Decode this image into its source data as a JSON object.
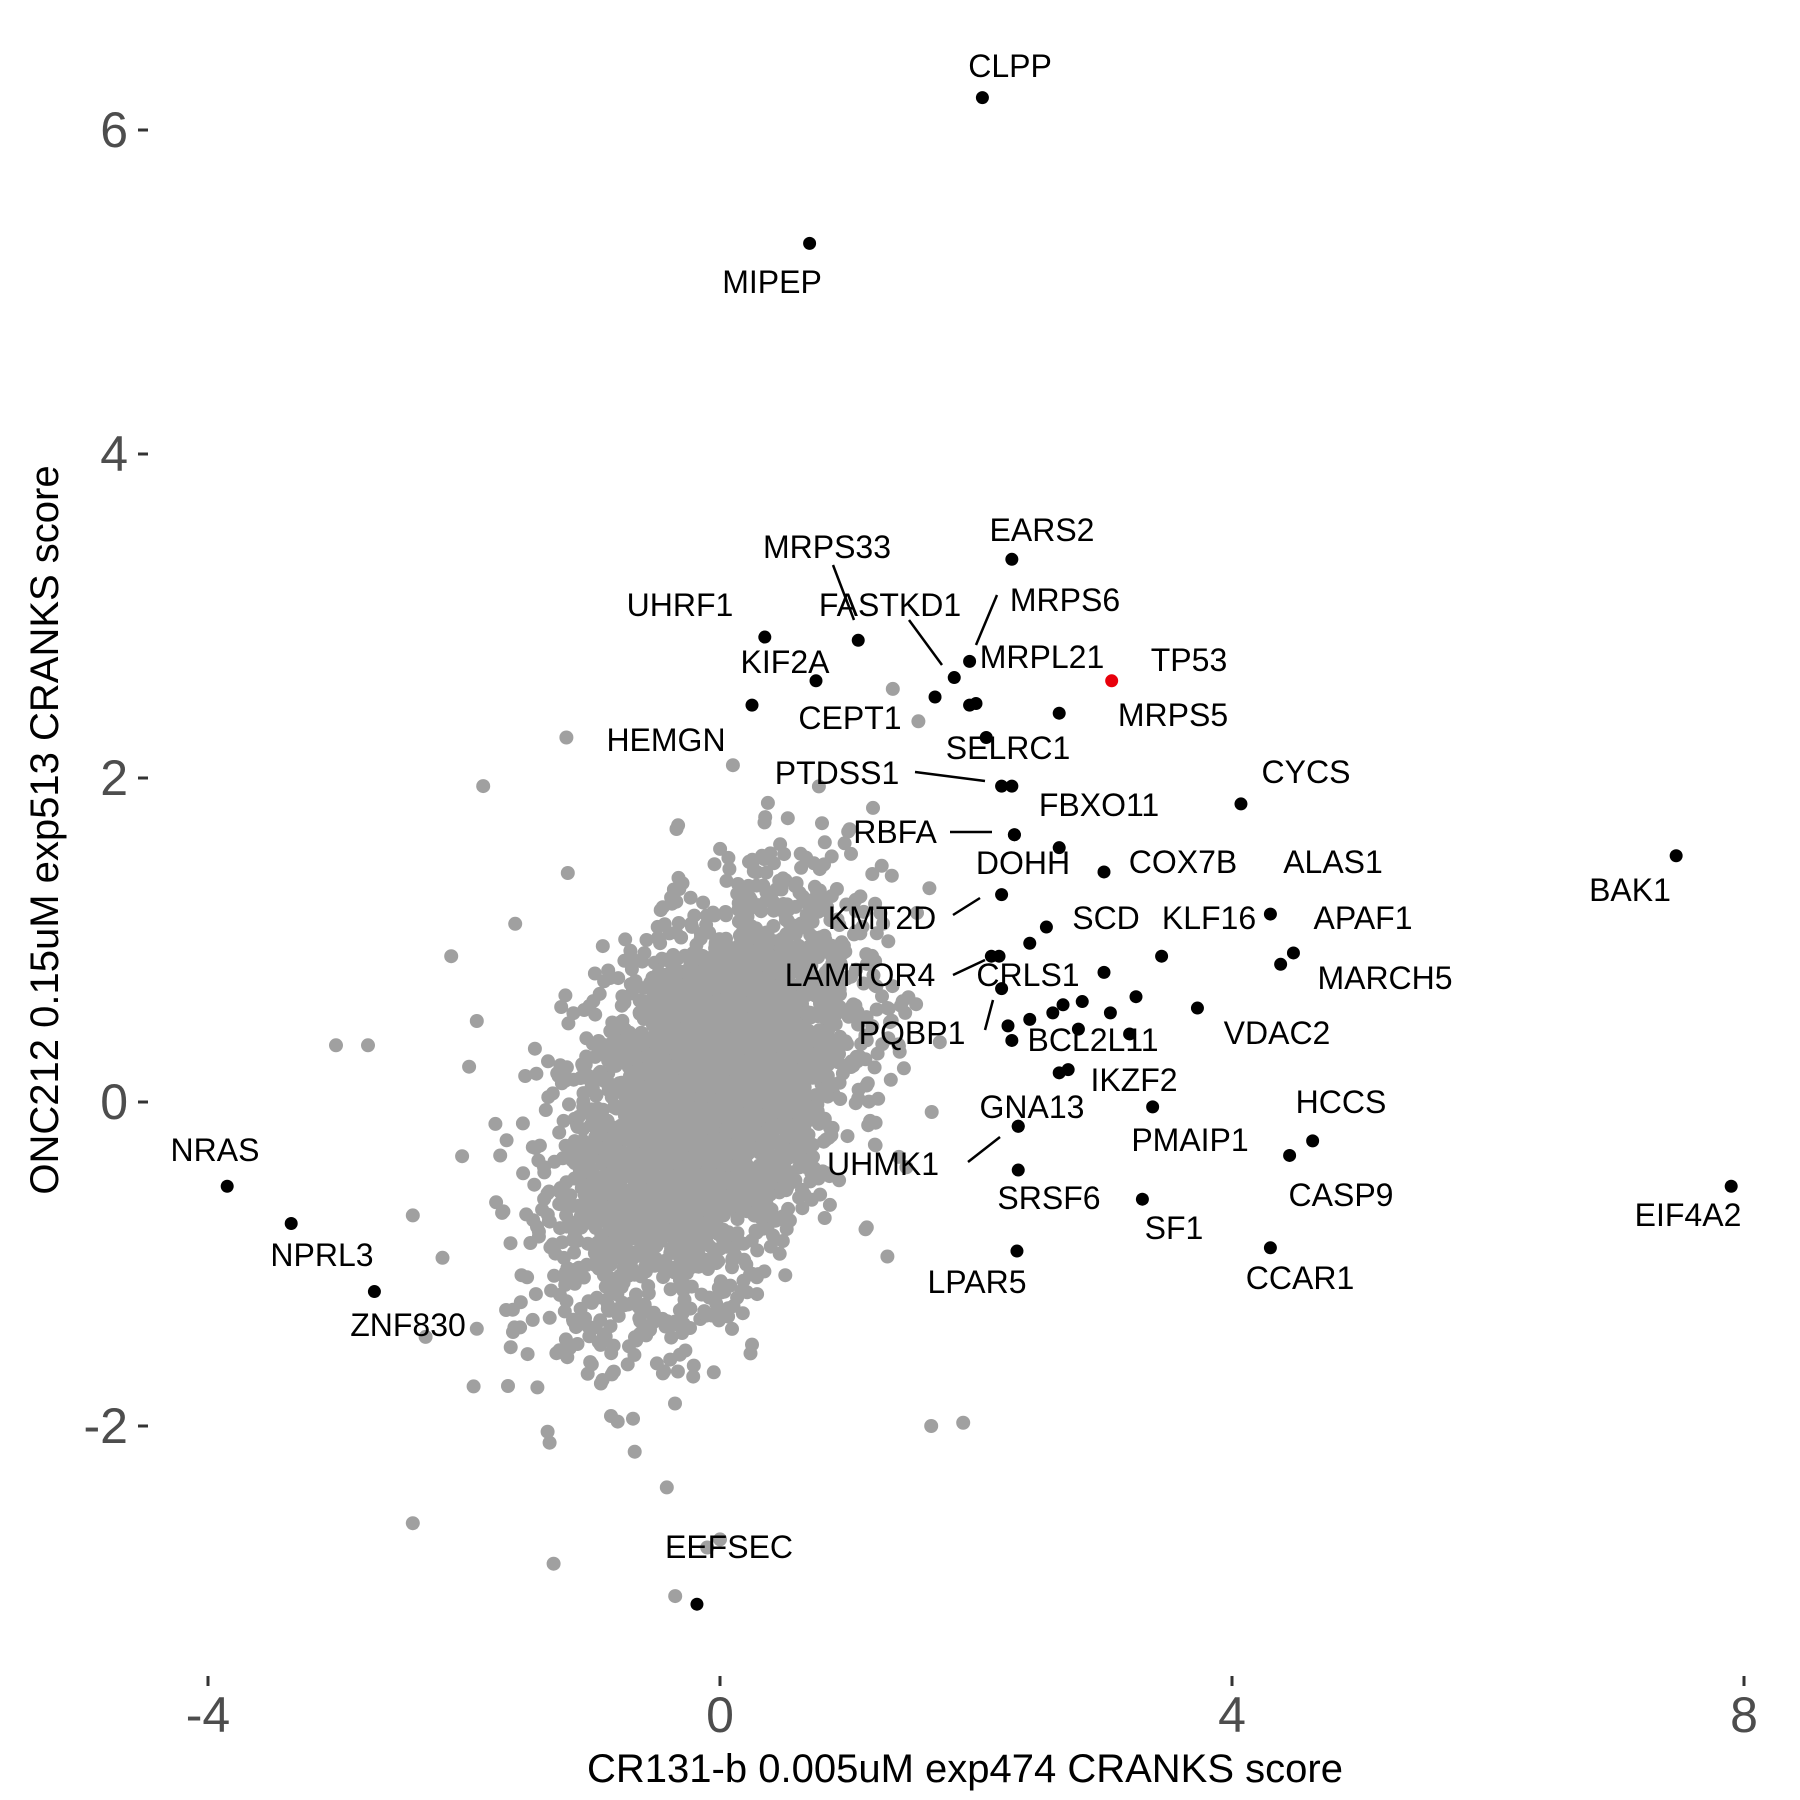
{
  "chart_data": {
    "type": "scatter",
    "title": "",
    "xlabel": "CR131-b 0.005uM exp474 CRANKS score",
    "ylabel": "ONC212 0.15uM exp513 CRANKS score",
    "xlim": [
      -4.5,
      8.3
    ],
    "ylim": [
      -3.45,
      6.55
    ],
    "x_ticks": [
      -4,
      0,
      4,
      8
    ],
    "y_ticks": [
      -2,
      0,
      2,
      4,
      6
    ],
    "x_tick_labels": [
      "-4",
      "0",
      "4",
      "8"
    ],
    "y_tick_labels": [
      "-2",
      "0",
      "2",
      "4",
      "6"
    ],
    "grid": false,
    "colors": {
      "background_genes": "#a0a0a0",
      "highlighted_genes": "#000000",
      "tp53": "#e8000b",
      "tick_text": "#4d4d4d"
    },
    "background_cloud": {
      "description_values": "dense cloud of background genes",
      "center": [
        -0.1,
        0.0
      ],
      "spread_x": 0.55,
      "spread_y": 0.62,
      "outliers": [
        [
          -2.75,
          0.35
        ],
        [
          -3.0,
          0.35
        ],
        [
          -1.9,
          0.5
        ],
        [
          -2.4,
          -0.7
        ],
        [
          -2.4,
          -2.6
        ],
        [
          -1.2,
          2.25
        ],
        [
          -1.85,
          1.95
        ],
        [
          -1.3,
          -2.85
        ],
        [
          -0.35,
          -3.05
        ],
        [
          -0.1,
          -2.75
        ],
        [
          0.0,
          -2.7
        ],
        [
          1.65,
          -2.0
        ],
        [
          1.9,
          -1.98
        ],
        [
          1.35,
          2.55
        ],
        [
          1.55,
          2.35
        ],
        [
          -1.6,
          1.1
        ],
        [
          -2.1,
          0.9
        ],
        [
          -2.3,
          -1.45
        ],
        [
          -1.9,
          -1.4
        ]
      ]
    },
    "series": [
      {
        "points": [
          {
            "label": "CLPP",
            "x": 2.05,
            "y": 6.2
          },
          {
            "label": "MIPEP",
            "x": 0.7,
            "y": 5.3
          },
          {
            "label": "EARS2",
            "x": 2.28,
            "y": 3.35
          },
          {
            "label": "MRPS33",
            "x": 1.08,
            "y": 2.85
          },
          {
            "label": "UHRF1",
            "x": 0.35,
            "y": 2.87
          },
          {
            "label": "FASTKD1",
            "x": 1.83,
            "y": 2.62
          },
          {
            "label": "MRPS6",
            "x": 1.95,
            "y": 2.72
          },
          {
            "label": "MRPL21",
            "x": 1.68,
            "y": 2.5
          },
          {
            "label": "KIF2A",
            "x": 0.75,
            "y": 2.6
          },
          {
            "label": "TP53",
            "x": 3.06,
            "y": 2.6
          },
          {
            "label": "CEPT1",
            "x": 0.25,
            "y": 2.45
          },
          {
            "label": "MRPS5",
            "x": 2.65,
            "y": 2.4
          },
          {
            "label": "HEMGN",
            "x": 1.95,
            "y": 2.45
          },
          {
            "label": "SELRC1",
            "x": 2.28,
            "y": 1.95
          },
          {
            "label": "PTDSS1",
            "x": 2.2,
            "y": 1.95
          },
          {
            "label": "CYCS",
            "x": 4.07,
            "y": 1.84
          },
          {
            "label": "FBXO11",
            "x": 2.3,
            "y": 1.65
          },
          {
            "label": "RBFA",
            "x": 2.3,
            "y": 1.65
          },
          {
            "label": "BAK1",
            "x": 7.47,
            "y": 1.52
          },
          {
            "label": "COX7B",
            "x": 3.0,
            "y": 1.42
          },
          {
            "label": "DOHH",
            "x": 2.65,
            "y": 1.57
          },
          {
            "label": "ALAS1",
            "x": 4.3,
            "y": 1.16
          },
          {
            "label": "KMT2D",
            "x": 2.2,
            "y": 1.28
          },
          {
            "label": "SCD",
            "x": 2.55,
            "y": 1.08
          },
          {
            "label": "KLF16",
            "x": 3.45,
            "y": 0.9
          },
          {
            "label": "APAF1",
            "x": 4.48,
            "y": 0.92
          },
          {
            "label": "MARCH5",
            "x": 4.38,
            "y": 0.85
          },
          {
            "label": "LAMTOR4",
            "x": 2.18,
            "y": 0.9
          },
          {
            "label": "CRLS1",
            "x": 2.2,
            "y": 0.7
          },
          {
            "label": "PQBP1",
            "x": 2.25,
            "y": 0.47
          },
          {
            "label": "VDAC2",
            "x": 3.73,
            "y": 0.58
          },
          {
            "label": "BCL2L11",
            "x": 2.28,
            "y": 0.38
          },
          {
            "label": "IKZF2",
            "x": 2.72,
            "y": 0.2
          },
          {
            "label": "HCCS",
            "x": 4.63,
            "y": -0.24
          },
          {
            "label": "PMAIP1",
            "x": 4.45,
            "y": -0.33
          },
          {
            "label": "GNA13",
            "x": 2.33,
            "y": -0.15
          },
          {
            "label": "UHMK1",
            "x": 2.33,
            "y": -0.15
          },
          {
            "label": "SRSF6",
            "x": 2.33,
            "y": -0.42
          },
          {
            "label": "CASP9",
            "x": 3.3,
            "y": -0.6
          },
          {
            "label": "SF1",
            "x": 3.38,
            "y": -0.03
          },
          {
            "label": "EIF4A2",
            "x": 7.9,
            "y": -0.52
          },
          {
            "label": "CCAR1",
            "x": 4.3,
            "y": -0.9
          },
          {
            "label": "LPAR5",
            "x": 2.32,
            "y": -0.92
          },
          {
            "label": "NRAS",
            "x": -3.85,
            "y": -0.52
          },
          {
            "label": "NPRL3",
            "x": -3.35,
            "y": -0.75
          },
          {
            "label": "ZNF830",
            "x": -2.7,
            "y": -1.17
          },
          {
            "label": "EEFSEC",
            "x": -0.18,
            "y": -3.1
          }
        ],
        "unlabeled_points": [
          [
            2.12,
            0.9
          ],
          [
            2.42,
            0.98
          ],
          [
            3.0,
            0.8
          ],
          [
            2.83,
            0.62
          ],
          [
            3.25,
            0.65
          ],
          [
            3.05,
            0.55
          ],
          [
            2.6,
            0.55
          ],
          [
            2.68,
            0.6
          ],
          [
            2.42,
            0.51
          ],
          [
            2.8,
            0.45
          ],
          [
            3.2,
            0.42
          ],
          [
            2.65,
            0.18
          ],
          [
            2.08,
            2.25
          ],
          [
            2.0,
            2.46
          ]
        ]
      }
    ]
  }
}
